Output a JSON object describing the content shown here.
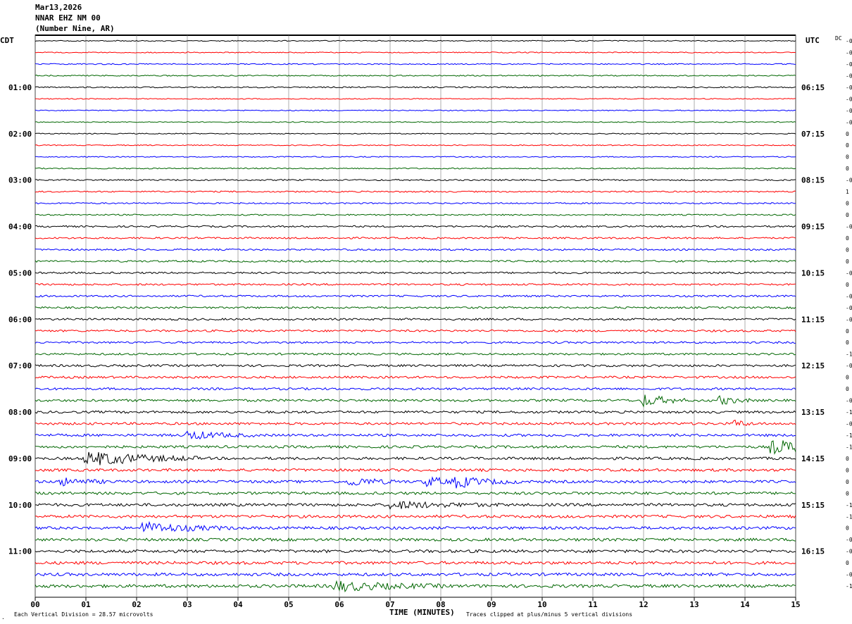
{
  "header": {
    "date": "Mar13,2026",
    "station": "NNAR EHZ NM 00",
    "location": "(Number Nine, AR)"
  },
  "left_axis_title": "CDT",
  "right_axis_title": "UTC",
  "dc_label": "DC",
  "footer": {
    "vertical_division": "Each Vertical Division =   28.57 microvolts",
    "clipping": "Traces clipped at plus/minus 5 vertical divisions"
  },
  "colors": {
    "trace_cycle": [
      "#000000",
      "#ff0000",
      "#0000ff",
      "#006600"
    ],
    "grid": "#777777"
  },
  "chart_data": {
    "type": "line",
    "title": "",
    "xlabel": "TIME (MINUTES)",
    "xlim": [
      0,
      15
    ],
    "x_ticks": [
      "00",
      "01",
      "02",
      "03",
      "04",
      "05",
      "06",
      "07",
      "08",
      "09",
      "10",
      "11",
      "12",
      "13",
      "14",
      "15"
    ],
    "left_time_labels": [
      "01:00",
      "02:00",
      "03:00",
      "04:00",
      "05:00",
      "06:00",
      "07:00",
      "08:00",
      "09:00",
      "10:00",
      "11:00"
    ],
    "right_time_labels": [
      "06:15",
      "07:15",
      "08:15",
      "09:15",
      "10:15",
      "11:15",
      "12:15",
      "13:15",
      "14:15",
      "15:15",
      "16:15"
    ],
    "hour_label_rows": [
      4,
      8,
      12,
      16,
      20,
      24,
      28,
      32,
      36,
      40,
      44
    ],
    "row_count": 48,
    "dc_offsets": [
      "-0",
      "-0",
      "-0",
      "-0",
      "-0",
      "-0",
      "-0",
      "-0",
      "0",
      "0",
      "0",
      "0",
      "-0",
      "1",
      "0",
      "0",
      "-0",
      "0",
      "0",
      "0",
      "-0",
      "0",
      "-0",
      "-0",
      "-0",
      "0",
      "0",
      "-1",
      "-0",
      "0",
      "0",
      "-0",
      "-1",
      "-0",
      "-1",
      "-1",
      "0",
      "0",
      "0",
      "0",
      "-1",
      "-1",
      "0",
      "-0",
      "-0",
      "0",
      "-0",
      "-1"
    ],
    "noise_levels": [
      0.7,
      0.7,
      0.8,
      0.8,
      0.9,
      0.7,
      0.7,
      0.7,
      0.7,
      0.7,
      0.7,
      0.8,
      1.0,
      1.0,
      1.0,
      1.0,
      1.2,
      1.2,
      1.2,
      1.3,
      1.3,
      1.3,
      1.3,
      1.3,
      1.4,
      1.4,
      1.4,
      1.4,
      1.6,
      1.6,
      1.6,
      1.7,
      1.7,
      1.7,
      1.8,
      1.8,
      1.9,
      1.9,
      1.9,
      1.9,
      2.0,
      2.0,
      2.0,
      2.0,
      2.1,
      2.1,
      2.1,
      2.2
    ],
    "events": [
      {
        "row": 31,
        "minute": 12.0,
        "amp": 9,
        "dur": 0.4
      },
      {
        "row": 31,
        "minute": 13.5,
        "amp": 6,
        "dur": 0.3
      },
      {
        "row": 33,
        "minute": 13.8,
        "amp": 5,
        "dur": 0.2
      },
      {
        "row": 34,
        "minute": 3.0,
        "amp": 6,
        "dur": 0.6
      },
      {
        "row": 35,
        "minute": 14.5,
        "amp": 10,
        "dur": 0.9
      },
      {
        "row": 36,
        "minute": 1.0,
        "amp": 11,
        "dur": 1.0
      },
      {
        "row": 38,
        "minute": 0.5,
        "amp": 5,
        "dur": 0.5
      },
      {
        "row": 38,
        "minute": 6.2,
        "amp": 6,
        "dur": 0.5
      },
      {
        "row": 38,
        "minute": 7.7,
        "amp": 7,
        "dur": 0.4
      },
      {
        "row": 38,
        "minute": 8.3,
        "amp": 7,
        "dur": 0.6
      },
      {
        "row": 40,
        "minute": 7.0,
        "amp": 5,
        "dur": 1.0
      },
      {
        "row": 42,
        "minute": 2.1,
        "amp": 8,
        "dur": 0.8
      },
      {
        "row": 47,
        "minute": 5.9,
        "amp": 7,
        "dur": 1.0
      }
    ]
  }
}
